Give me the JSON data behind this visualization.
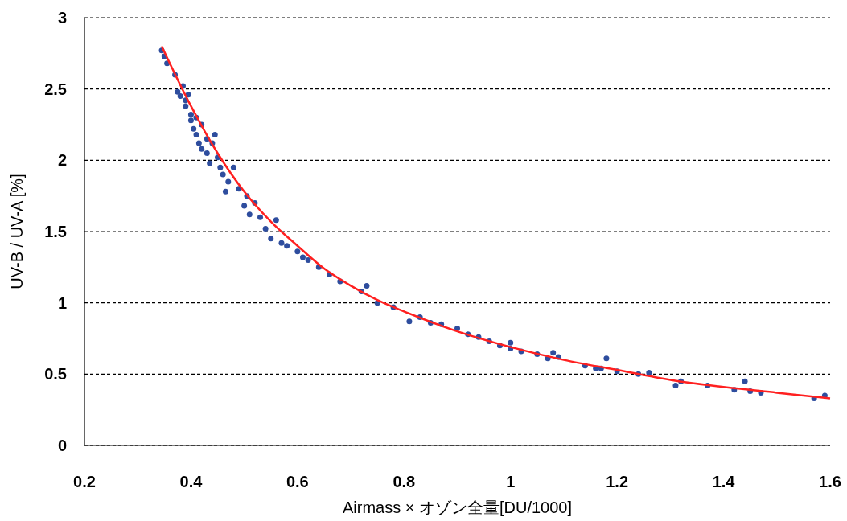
{
  "chart_data": {
    "type": "scatter",
    "xlabel": "Airmass × オゾン全量[DU/1000]",
    "ylabel": "UV-B / UV-A [%]",
    "xlim": [
      0.2,
      1.6
    ],
    "xticks": [
      {
        "value": 0.2,
        "label": "0.2"
      },
      {
        "value": 0.4,
        "label": "0.4"
      },
      {
        "value": 0.6,
        "label": "0.6"
      },
      {
        "value": 0.8,
        "label": "0.8"
      },
      1,
      {
        "value": 1.2,
        "label": "1.2"
      },
      {
        "value": 1.4,
        "label": "1.4"
      },
      {
        "value": 1.6,
        "label": "1.6"
      }
    ],
    "ylim": [
      0,
      3
    ],
    "yticks": [
      0,
      0.5,
      1,
      1.5,
      2,
      2.5,
      3
    ],
    "grid": "y",
    "series": [
      {
        "color": "#2e4d9e",
        "marker": "circle",
        "x": [
          0.345,
          0.35,
          0.355,
          0.37,
          0.375,
          0.38,
          0.385,
          0.39,
          0.39,
          0.395,
          0.4,
          0.4,
          0.405,
          0.41,
          0.41,
          0.415,
          0.42,
          0.42,
          0.43,
          0.43,
          0.435,
          0.44,
          0.445,
          0.45,
          0.455,
          0.46,
          0.465,
          0.47,
          0.48,
          0.49,
          0.5,
          0.505,
          0.51,
          0.52,
          0.53,
          0.54,
          0.55,
          0.56,
          0.57,
          0.58,
          0.6,
          0.61,
          0.62,
          0.64,
          0.66,
          0.68,
          0.72,
          0.73,
          0.75,
          0.78,
          0.81,
          0.83,
          0.85,
          0.87,
          0.9,
          0.92,
          0.94,
          0.96,
          0.98,
          1.0,
          1.0,
          1.02,
          1.05,
          1.07,
          1.08,
          1.09,
          1.14,
          1.16,
          1.17,
          1.18,
          1.2,
          1.24,
          1.26,
          1.31,
          1.32,
          1.37,
          1.42,
          1.44,
          1.45,
          1.47,
          1.57,
          1.59
        ],
        "values": [
          2.77,
          2.73,
          2.68,
          2.6,
          2.48,
          2.45,
          2.52,
          2.42,
          2.38,
          2.46,
          2.32,
          2.28,
          2.22,
          2.18,
          2.3,
          2.12,
          2.08,
          2.25,
          2.15,
          2.05,
          1.98,
          2.12,
          2.18,
          2.02,
          1.95,
          1.9,
          1.78,
          1.85,
          1.95,
          1.8,
          1.68,
          1.75,
          1.62,
          1.7,
          1.6,
          1.52,
          1.45,
          1.58,
          1.42,
          1.4,
          1.36,
          1.32,
          1.3,
          1.25,
          1.2,
          1.15,
          1.08,
          1.12,
          1.0,
          0.97,
          0.87,
          0.9,
          0.86,
          0.85,
          0.82,
          0.78,
          0.76,
          0.73,
          0.7,
          0.68,
          0.72,
          0.66,
          0.64,
          0.61,
          0.65,
          0.62,
          0.56,
          0.54,
          0.54,
          0.61,
          0.52,
          0.5,
          0.51,
          0.42,
          0.45,
          0.42,
          0.39,
          0.45,
          0.38,
          0.37,
          0.33,
          0.35
        ]
      },
      {
        "type": "line",
        "color": "#ff2020",
        "marker": "none",
        "line_style": "solid",
        "x": [
          0.345,
          0.4,
          0.45,
          0.5,
          0.55,
          0.6,
          0.65,
          0.7,
          0.75,
          0.8,
          0.9,
          1.0,
          1.1,
          1.2,
          1.3,
          1.4,
          1.5,
          1.6
        ],
        "values": [
          2.8,
          2.38,
          2.05,
          1.78,
          1.57,
          1.4,
          1.24,
          1.12,
          1.02,
          0.94,
          0.8,
          0.69,
          0.6,
          0.53,
          0.46,
          0.41,
          0.37,
          0.33
        ]
      }
    ]
  }
}
